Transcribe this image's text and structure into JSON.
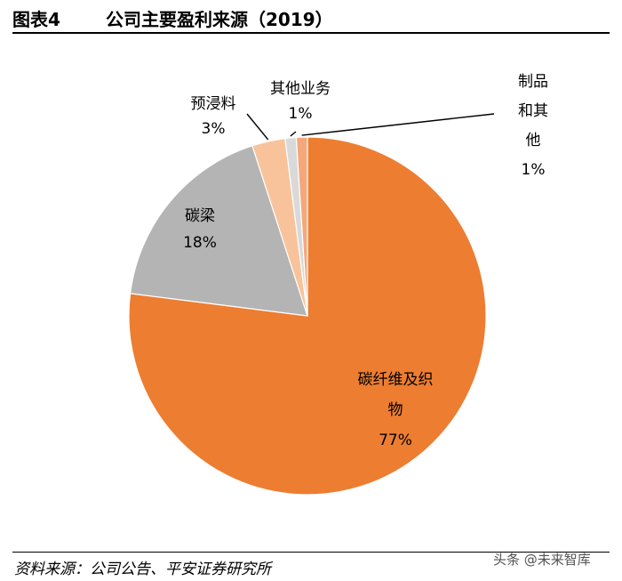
{
  "header": {
    "figure_label": "图表4",
    "title": "公司主要盈利来源（2019）"
  },
  "footer": {
    "source": "资料来源：公司公告、平安证券研究所",
    "watermark": "头条 @未来智库"
  },
  "chart_data": {
    "type": "pie",
    "title": "公司主要盈利来源（2019）",
    "slices": [
      {
        "label": "碳纤维及织物",
        "value": 77,
        "value_text": "77%",
        "color": "#ed7d31"
      },
      {
        "label": "碳梁",
        "value": 18,
        "value_text": "18%",
        "color": "#b4b4b4"
      },
      {
        "label": "预浸料",
        "value": 3,
        "value_text": "3%",
        "color": "#f8c39b"
      },
      {
        "label": "其他业务",
        "value": 1,
        "value_text": "1%",
        "color": "#d9d9d9"
      },
      {
        "label": "制品和其他",
        "value": 1,
        "value_text": "1%",
        "color": "#f4a77a"
      }
    ]
  }
}
